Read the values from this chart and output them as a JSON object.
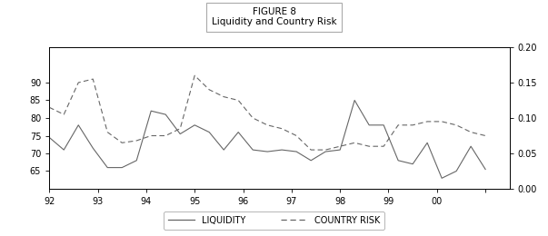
{
  "title_line1": "FIGURE 8",
  "title_line2": "Liquidity and Country Risk",
  "xlim": [
    92,
    101.5
  ],
  "ylim_left": [
    60,
    100
  ],
  "ylim_right": [
    0.0,
    0.2
  ],
  "xticks": [
    92,
    93,
    94,
    95,
    96,
    97,
    98,
    99,
    100,
    101
  ],
  "xticklabels": [
    "92",
    "93",
    "94",
    "95",
    "96",
    "97",
    "98",
    "99",
    "00",
    ""
  ],
  "yticks_left": [
    65,
    70,
    75,
    80,
    85,
    90
  ],
  "yticks_right": [
    0.0,
    0.05,
    0.1,
    0.15,
    0.2
  ],
  "legend_labels": [
    "LIQUIDITY",
    "COUNTRY RISK"
  ],
  "liquidity_x": [
    92.0,
    92.3,
    92.6,
    92.9,
    93.2,
    93.5,
    93.8,
    94.1,
    94.4,
    94.7,
    95.0,
    95.3,
    95.6,
    95.9,
    96.2,
    96.5,
    96.8,
    97.1,
    97.4,
    97.7,
    98.0,
    98.3,
    98.6,
    98.9,
    99.2,
    99.5,
    99.8,
    100.1,
    100.4,
    100.7,
    101.0
  ],
  "liquidity_y": [
    74.5,
    71.0,
    78.0,
    71.5,
    66.0,
    66.0,
    68.0,
    82.0,
    81.0,
    75.5,
    78.0,
    76.0,
    71.0,
    76.0,
    71.0,
    70.5,
    71.0,
    70.5,
    68.0,
    70.5,
    71.0,
    85.0,
    78.0,
    78.0,
    68.0,
    67.0,
    73.0,
    63.0,
    65.0,
    72.0,
    65.5
  ],
  "country_risk_x": [
    92.0,
    92.3,
    92.6,
    92.9,
    93.2,
    93.5,
    93.8,
    94.1,
    94.4,
    94.7,
    95.0,
    95.3,
    95.6,
    95.9,
    96.2,
    96.5,
    96.8,
    97.1,
    97.4,
    97.7,
    98.0,
    98.3,
    98.6,
    98.9,
    99.2,
    99.5,
    99.8,
    100.1,
    100.4,
    100.7,
    101.0
  ],
  "country_risk_y": [
    0.115,
    0.105,
    0.15,
    0.155,
    0.08,
    0.065,
    0.068,
    0.075,
    0.075,
    0.085,
    0.16,
    0.14,
    0.13,
    0.125,
    0.1,
    0.09,
    0.085,
    0.075,
    0.055,
    0.055,
    0.06,
    0.065,
    0.06,
    0.06,
    0.09,
    0.09,
    0.095,
    0.095,
    0.09,
    0.08,
    0.075
  ],
  "line_color": "#666666",
  "bg_color": "#ffffff"
}
